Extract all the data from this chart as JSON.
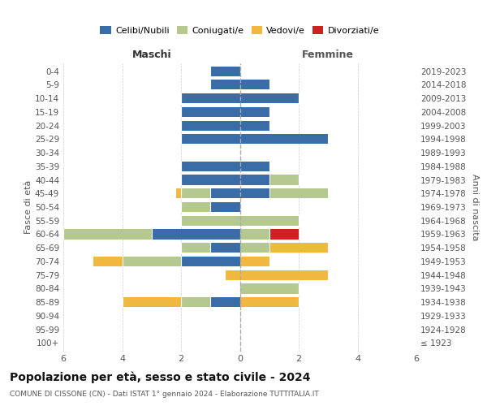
{
  "age_groups": [
    "100+",
    "95-99",
    "90-94",
    "85-89",
    "80-84",
    "75-79",
    "70-74",
    "65-69",
    "60-64",
    "55-59",
    "50-54",
    "45-49",
    "40-44",
    "35-39",
    "30-34",
    "25-29",
    "20-24",
    "15-19",
    "10-14",
    "5-9",
    "0-4"
  ],
  "birth_years": [
    "≤ 1923",
    "1924-1928",
    "1929-1933",
    "1934-1938",
    "1939-1943",
    "1944-1948",
    "1949-1953",
    "1954-1958",
    "1959-1963",
    "1964-1968",
    "1969-1973",
    "1974-1978",
    "1979-1983",
    "1984-1988",
    "1989-1993",
    "1994-1998",
    "1999-2003",
    "2004-2008",
    "2009-2013",
    "2014-2018",
    "2019-2023"
  ],
  "colors": {
    "celibi": "#3a6da8",
    "coniugati": "#b5c98e",
    "vedovi": "#f0b840",
    "divorziati": "#cc2222"
  },
  "maschi": {
    "celibi": [
      0,
      0,
      0,
      1,
      0,
      0,
      2,
      1,
      3,
      0,
      1,
      1,
      2,
      2,
      0,
      2,
      2,
      2,
      2,
      1,
      1
    ],
    "coniugati": [
      0,
      0,
      0,
      1,
      0,
      0,
      2,
      1,
      3,
      2,
      1,
      1,
      0,
      0,
      0,
      0,
      0,
      0,
      0,
      0,
      0
    ],
    "vedovi": [
      0,
      0,
      0,
      2,
      0,
      0.5,
      1,
      0,
      0,
      0,
      0,
      0.2,
      0,
      0,
      0,
      0,
      0,
      0,
      0,
      0,
      0
    ],
    "divorziati": [
      0,
      0,
      0,
      0,
      0,
      0,
      0,
      0,
      0,
      0,
      0,
      0,
      0,
      0,
      0,
      0,
      0,
      0,
      0,
      0,
      0
    ]
  },
  "femmine": {
    "celibi": [
      0,
      0,
      0,
      0,
      0,
      0,
      0,
      0,
      0,
      0,
      0,
      1,
      1,
      1,
      0,
      3,
      1,
      1,
      2,
      1,
      0
    ],
    "coniugati": [
      0,
      0,
      0,
      0,
      2,
      0,
      0,
      1,
      1,
      2,
      0,
      2,
      1,
      0,
      0,
      0,
      0,
      0,
      0,
      0,
      0
    ],
    "vedovi": [
      0,
      0,
      0,
      2,
      0,
      3,
      1,
      2,
      0,
      0,
      0,
      0,
      0,
      0,
      0,
      0,
      0,
      0,
      0,
      0,
      0
    ],
    "divorziati": [
      0,
      0,
      0,
      0,
      0,
      0,
      0,
      0,
      1,
      0,
      0,
      0,
      0,
      0,
      0,
      0,
      0,
      0,
      0,
      0,
      0
    ]
  },
  "xlim": 6,
  "title": "Popolazione per età, sesso e stato civile - 2024",
  "subtitle": "COMUNE DI CISSONE (CN) - Dati ISTAT 1° gennaio 2024 - Elaborazione TUTTITALIA.IT",
  "xlabel_left": "Maschi",
  "xlabel_right": "Femmine",
  "ylabel_left": "Fasce di età",
  "ylabel_right": "Anni di nascita",
  "legend_labels": [
    "Celibi/Nubili",
    "Coniugati/e",
    "Vedovi/e",
    "Divorziati/e"
  ],
  "bg_color": "#ffffff",
  "grid_color": "#cccccc"
}
